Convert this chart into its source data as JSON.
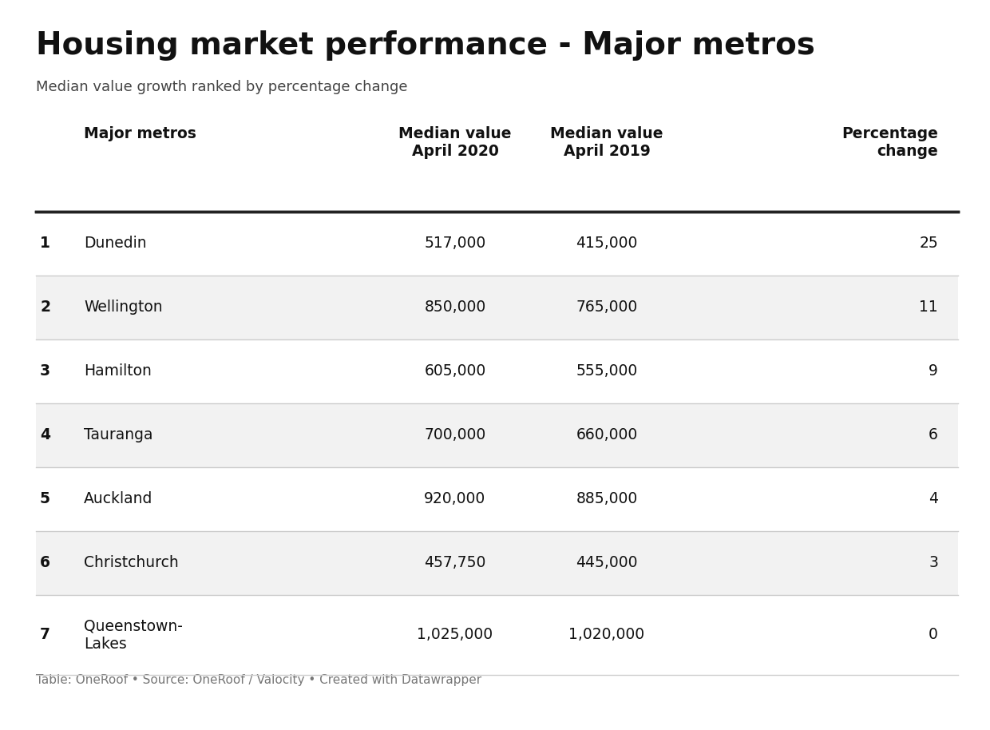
{
  "title": "Housing market performance - Major metros",
  "subtitle": "Median value growth ranked by percentage change",
  "footer": "Table: OneRoof • Source: OneRoof / Valocity • Created with Datawrapper",
  "col_headers": [
    "Major metros",
    "Median value\nApril 2020",
    "Median value\nApril 2019",
    "Percentage\nchange"
  ],
  "rows": [
    {
      "rank": "1",
      "city": "Dunedin",
      "val2020": "517,000",
      "val2019": "415,000",
      "pct": "25"
    },
    {
      "rank": "2",
      "city": "Wellington",
      "val2020": "850,000",
      "val2019": "765,000",
      "pct": "11"
    },
    {
      "rank": "3",
      "city": "Hamilton",
      "val2020": "605,000",
      "val2019": "555,000",
      "pct": "9"
    },
    {
      "rank": "4",
      "city": "Tauranga",
      "val2020": "700,000",
      "val2019": "660,000",
      "pct": "6"
    },
    {
      "rank": "5",
      "city": "Auckland",
      "val2020": "920,000",
      "val2019": "885,000",
      "pct": "4"
    },
    {
      "rank": "6",
      "city": "Christchurch",
      "val2020": "457,750",
      "val2019": "445,000",
      "pct": "3"
    },
    {
      "rank": "7",
      "city": "Queenstown-\nLakes",
      "val2020": "1,025,000",
      "val2019": "1,020,000",
      "pct": "0"
    }
  ],
  "bg_color": "#ffffff",
  "row_alt_color": "#f2f2f2",
  "row_white_color": "#ffffff",
  "header_line_color": "#222222",
  "row_line_color": "#cccccc",
  "title_fontsize": 28,
  "subtitle_fontsize": 13,
  "header_fontsize": 13.5,
  "cell_fontsize": 13.5,
  "footer_fontsize": 11
}
